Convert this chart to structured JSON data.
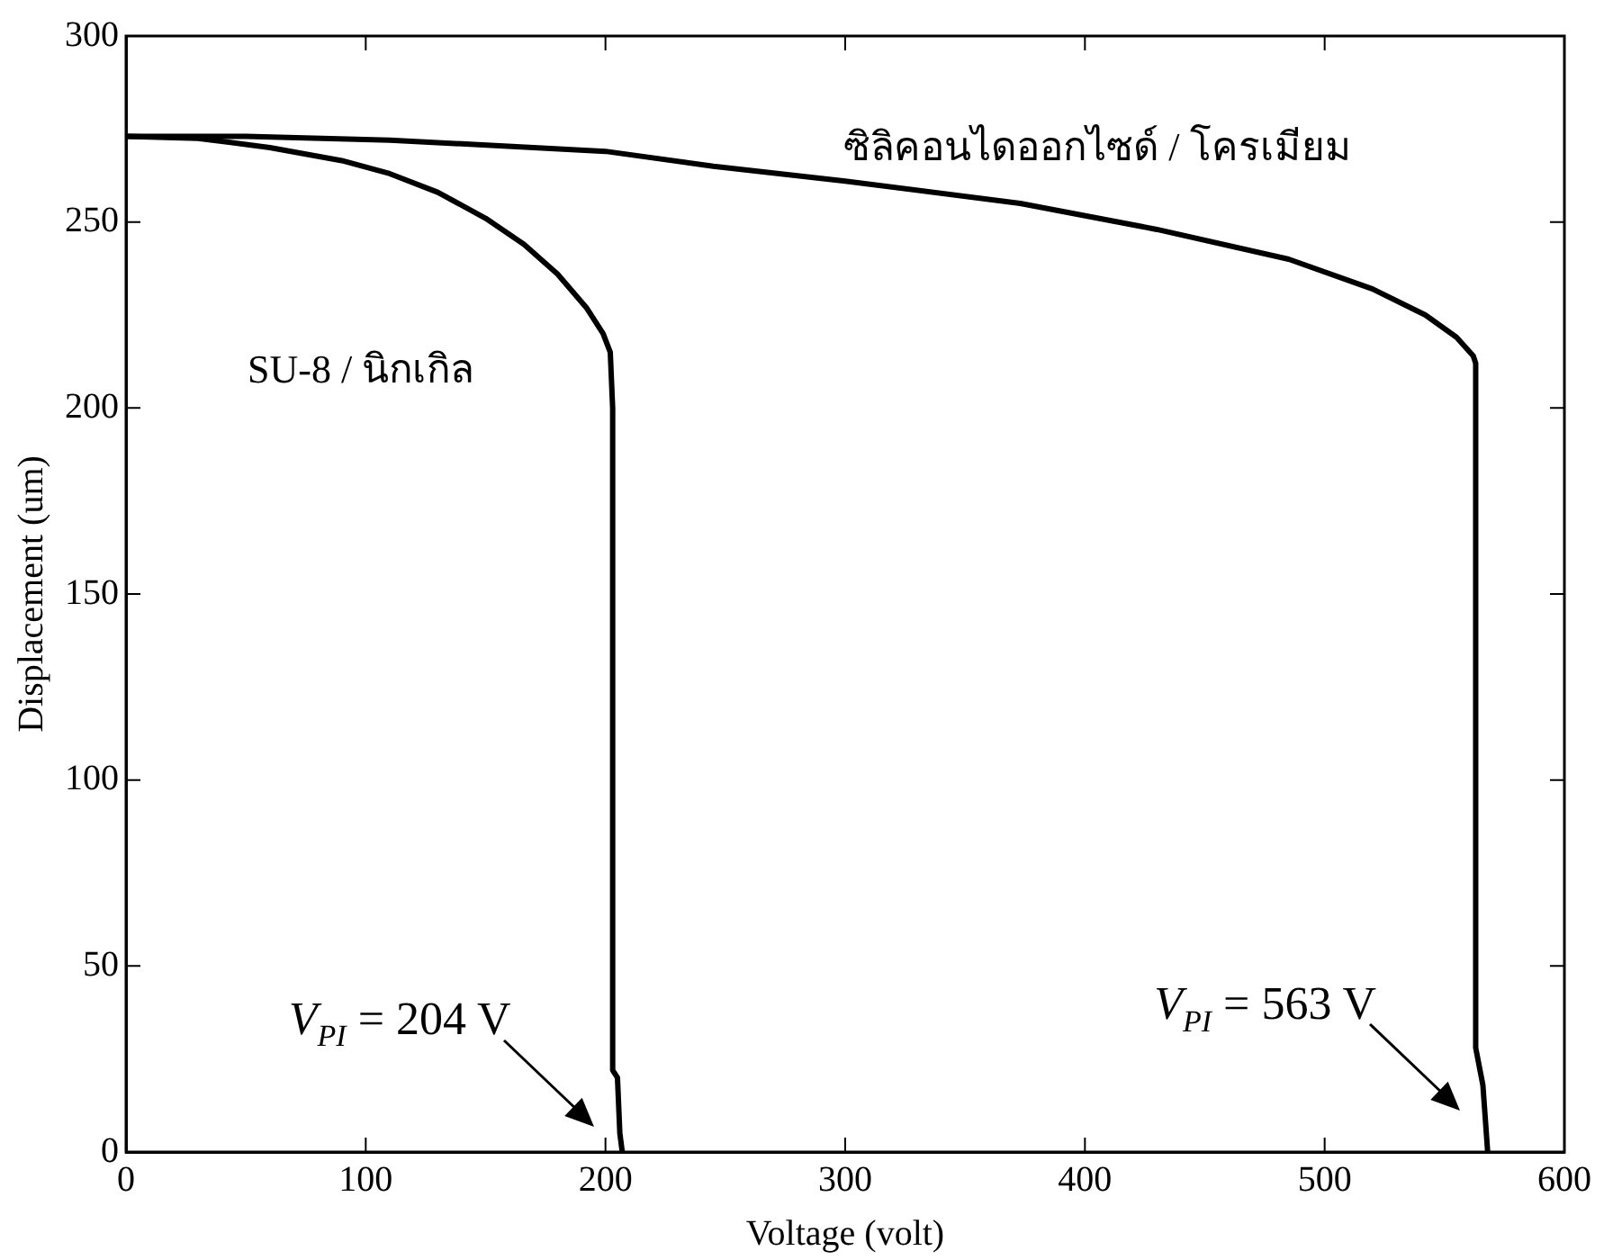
{
  "chart_data": {
    "type": "line",
    "xlabel": "Voltage (volt)",
    "ylabel": "Displacement (um)",
    "xlim": [
      0,
      600
    ],
    "xticks": [
      0,
      100,
      200,
      300,
      400,
      500,
      600
    ],
    "ylim": [
      0,
      300
    ],
    "yticks": [
      0,
      50,
      100,
      150,
      200,
      250,
      300
    ],
    "grid": false,
    "legend": false,
    "marker": "none",
    "line_style": "solid",
    "series": [
      {
        "name": "SU-8 / นิกเกิล",
        "color": "#000000",
        "x": [
          0,
          30,
          60,
          90,
          110,
          130,
          150,
          166,
          180,
          192,
          199,
          202,
          203,
          203,
          205,
          206,
          207
        ],
        "values": [
          273,
          272.5,
          270,
          266.5,
          263,
          258,
          251,
          244,
          236,
          227,
          220,
          215,
          200,
          22,
          20,
          5,
          0
        ]
      },
      {
        "name": "ซิลิคอนไดออกไซด์ / โครเมียม",
        "color": "#000000",
        "x": [
          0,
          50,
          110,
          200,
          245,
          300,
          373,
          430,
          485,
          520,
          542,
          555,
          562,
          563,
          563,
          566,
          568
        ],
        "values": [
          273,
          273,
          272,
          269,
          265,
          261,
          255,
          248,
          240,
          232,
          225,
          219,
          214,
          212,
          28,
          18,
          0
        ]
      }
    ],
    "annotations": [
      {
        "text": "V$_{PI}$ = 204 V",
        "x": 206,
        "y": 5
      },
      {
        "text": "V$_{PI}$ = 563 V",
        "x": 567,
        "y": 9
      }
    ]
  }
}
